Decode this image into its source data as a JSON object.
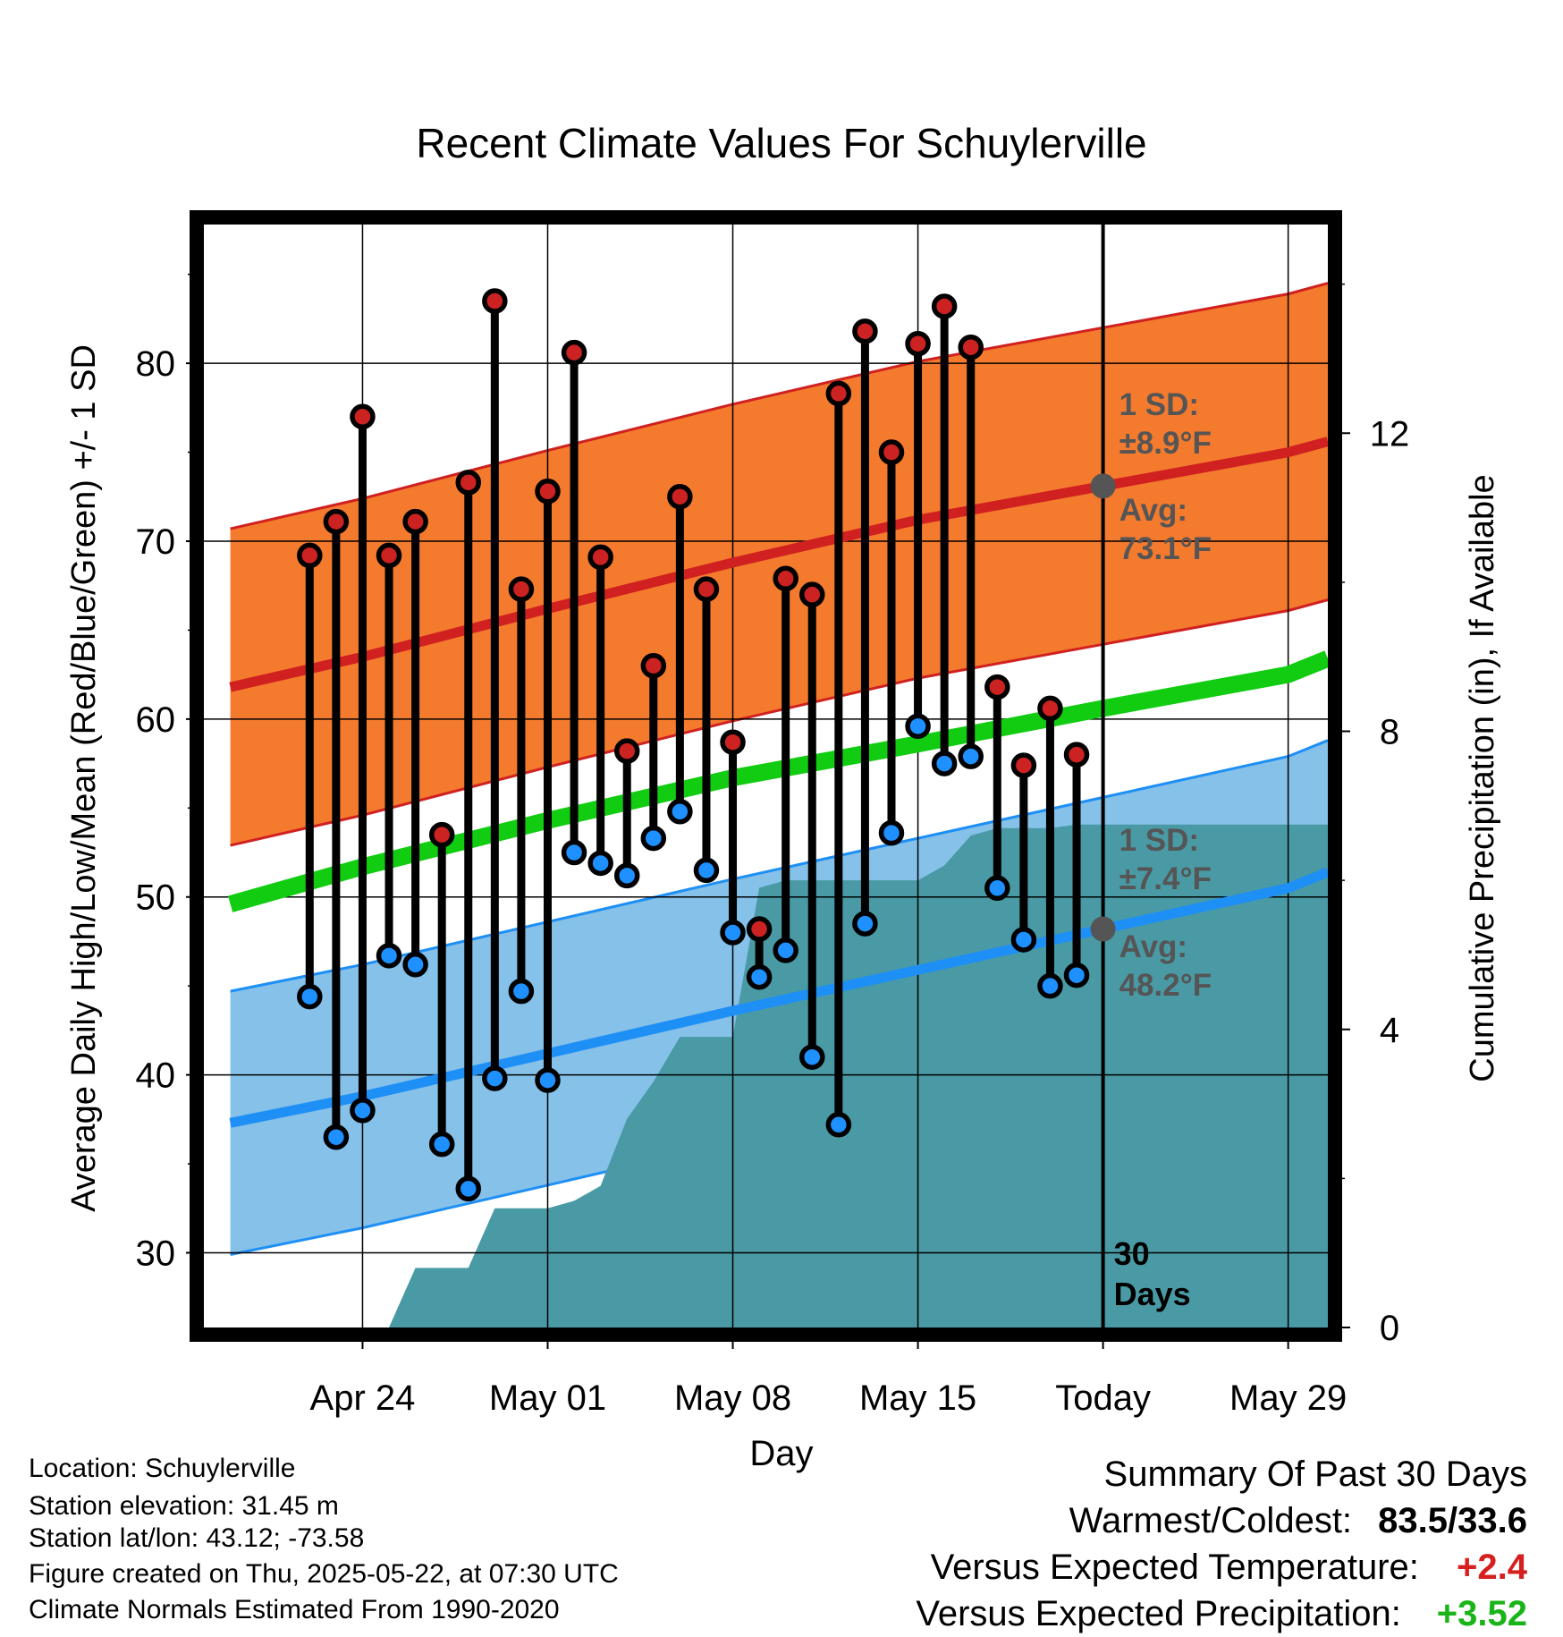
{
  "chart_data": {
    "type": "line",
    "title": "Recent Climate Values For Schuylerville",
    "xlabel": "Day",
    "ylabel": "Average Daily High/Low/Mean (Red/Blue/Green) +/- 1 SD",
    "y2label": "Cumulative Precipitation (in), If Available",
    "ylim": [
      25.8,
      87.8
    ],
    "y2lim": [
      0,
      14.8
    ],
    "yticks": [
      30,
      40,
      50,
      60,
      70,
      80
    ],
    "y2ticks": [
      0,
      4,
      8,
      12
    ],
    "x_tick_labels": [
      "Apr 24",
      "May 01",
      "May 08",
      "May 15",
      "Today",
      "May 29"
    ],
    "x_tick_days": [
      3,
      10,
      17,
      24,
      31,
      38
    ],
    "today_day": 31,
    "xlim": [
      -3,
      39.5
    ],
    "days": [
      1,
      2,
      3,
      4,
      5,
      6,
      7,
      8,
      9,
      10,
      11,
      12,
      13,
      14,
      15,
      16,
      17,
      18,
      19,
      20,
      21,
      22,
      23,
      24,
      25,
      26,
      27,
      28,
      29,
      30
    ],
    "series": [
      {
        "name": "High",
        "color": "#cc2222",
        "values": [
          69.2,
          71.1,
          77.0,
          69.2,
          71.1,
          53.5,
          73.3,
          83.5,
          67.3,
          72.8,
          80.6,
          69.1,
          58.2,
          63.0,
          72.5,
          67.3,
          58.7,
          48.2,
          67.9,
          67.0,
          78.3,
          81.8,
          75.0,
          81.1,
          83.2,
          80.9,
          61.8,
          57.4,
          60.6,
          58.0
        ]
      },
      {
        "name": "Low",
        "color": "#1e90ff",
        "values": [
          44.4,
          36.5,
          38.0,
          46.7,
          46.2,
          36.1,
          33.6,
          39.8,
          44.7,
          39.7,
          52.5,
          51.9,
          51.2,
          53.3,
          54.8,
          51.5,
          48.0,
          45.5,
          47.0,
          41.0,
          37.2,
          48.5,
          53.6,
          59.6,
          57.5,
          57.9,
          50.5,
          47.6,
          45.0,
          45.6
        ]
      }
    ],
    "normals": {
      "avg_high": [
        [
          -2,
          61.8
        ],
        [
          3,
          63.5
        ],
        [
          10,
          66.2
        ],
        [
          17,
          68.8
        ],
        [
          24,
          71.2
        ],
        [
          31,
          73.1
        ],
        [
          38,
          75.0
        ],
        [
          39.5,
          75.6
        ]
      ],
      "avg_low": [
        [
          -2,
          37.3
        ],
        [
          3,
          38.8
        ],
        [
          10,
          41.2
        ],
        [
          17,
          43.6
        ],
        [
          24,
          45.9
        ],
        [
          31,
          48.2
        ],
        [
          38,
          50.5
        ],
        [
          39.5,
          51.4
        ]
      ],
      "avg_mean": [
        [
          -2,
          49.6
        ],
        [
          3,
          51.7
        ],
        [
          10,
          54.3
        ],
        [
          17,
          56.7
        ],
        [
          24,
          58.6
        ],
        [
          31,
          60.6
        ],
        [
          38,
          62.5
        ],
        [
          39.5,
          63.4
        ]
      ],
      "high_sd": 8.9,
      "low_sd": 7.4
    },
    "precip_cumulative": [
      [
        1,
        0
      ],
      [
        2,
        0
      ],
      [
        3,
        0
      ],
      [
        4,
        0
      ],
      [
        5,
        0.8
      ],
      [
        6,
        0.8
      ],
      [
        7,
        0.8
      ],
      [
        8,
        1.6
      ],
      [
        9,
        1.6
      ],
      [
        10,
        1.6
      ],
      [
        11,
        1.7
      ],
      [
        12,
        1.9
      ],
      [
        13,
        2.8
      ],
      [
        14,
        3.3
      ],
      [
        15,
        3.9
      ],
      [
        16,
        3.9
      ],
      [
        17,
        3.9
      ],
      [
        18,
        5.9
      ],
      [
        19,
        6.0
      ],
      [
        20,
        6.0
      ],
      [
        21,
        6.0
      ],
      [
        22,
        6.0
      ],
      [
        23,
        6.0
      ],
      [
        24,
        6.0
      ],
      [
        25,
        6.2
      ],
      [
        26,
        6.6
      ],
      [
        27,
        6.7
      ],
      [
        28,
        6.7
      ],
      [
        29,
        6.7
      ],
      [
        30,
        6.75
      ],
      [
        31,
        6.75
      ],
      [
        39.5,
        6.75
      ]
    ],
    "annotations": {
      "high_sd_line1": "1 SD:",
      "high_sd_line2": "±8.9°F",
      "high_avg_line1": "Avg:",
      "high_avg_line2": "73.1°F",
      "low_sd_line1": "1 SD:",
      "low_sd_line2": "±7.4°F",
      "low_avg_line1": "Avg:",
      "low_avg_line2": "48.2°F",
      "days_line1": "30",
      "days_line2": "Days"
    },
    "colors": {
      "high_band": "#f47a2e",
      "high_line": "#d02020",
      "low_band": "#85c1e9",
      "low_line": "#1e8ff5",
      "mean_line": "#11cc11",
      "precip_fill": "#4a9aa5",
      "annotation_text": "#555555"
    }
  },
  "info": {
    "location": "Location: Schuylerville",
    "elevation": "Station elevation: 31.45 m",
    "latlon": "Station lat/lon: 43.12; -73.58",
    "created": "Figure created on Thu, 2025-05-22, at 07:30 UTC",
    "normals": "Climate Normals Estimated From 1990-2020"
  },
  "summary": {
    "title": "Summary Of Past 30 Days",
    "warm_label": "Warmest/Coldest:",
    "warm_value": "83.5/33.6",
    "temp_label": "Versus Expected Temperature:",
    "temp_value": "+2.4",
    "temp_color": "#d62020",
    "precip_label": "Versus Expected Precipitation:",
    "precip_value": "+3.52",
    "precip_color": "#18b418"
  }
}
